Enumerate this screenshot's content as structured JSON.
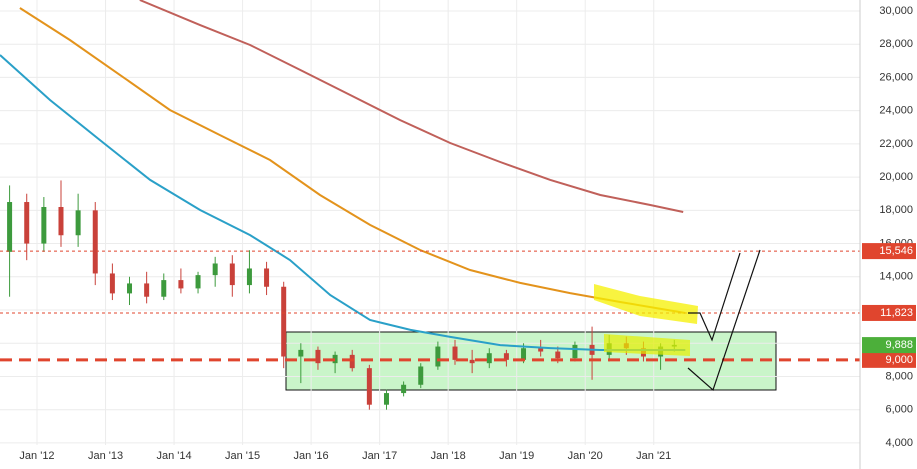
{
  "chart_data": {
    "type": "candlestick",
    "xlim": [
      2011.46,
      2024.01
    ],
    "ylim": [
      2430,
      30660
    ],
    "grid": true,
    "xticks": [
      {
        "value": 2012,
        "label": "Jan '12"
      },
      {
        "value": 2013,
        "label": "Jan '13"
      },
      {
        "value": 2014,
        "label": "Jan '14"
      },
      {
        "value": 2015,
        "label": "Jan '15"
      },
      {
        "value": 2016,
        "label": "Jan '16"
      },
      {
        "value": 2017,
        "label": "Jan '17"
      },
      {
        "value": 2018,
        "label": "Jan '18"
      },
      {
        "value": 2019,
        "label": "Jan '19"
      },
      {
        "value": 2020,
        "label": "Jan '20"
      },
      {
        "value": 2021,
        "label": "Jan '21"
      }
    ],
    "yticks": [
      {
        "value": 4000,
        "label": "4,000"
      },
      {
        "value": 6000,
        "label": "6,000"
      },
      {
        "value": 8000,
        "label": "8,000"
      },
      {
        "value": 10000,
        "label": "10,000"
      },
      {
        "value": 12000,
        "label": "12,000"
      },
      {
        "value": 14000,
        "label": "14,000"
      },
      {
        "value": 16000,
        "label": "16,000"
      },
      {
        "value": 18000,
        "label": "18,000"
      },
      {
        "value": 20000,
        "label": "20,000"
      },
      {
        "value": 22000,
        "label": "22,000"
      },
      {
        "value": 24000,
        "label": "24,000"
      },
      {
        "value": 26000,
        "label": "26,000"
      },
      {
        "value": 28000,
        "label": "28,000"
      },
      {
        "value": 30000,
        "label": "30,000"
      }
    ],
    "up_color": "#3d9a3d",
    "down_color": "#c9413a",
    "candles": {
      "x": [
        2011.6,
        2011.85,
        2012.1,
        2012.35,
        2012.6,
        2012.85,
        2013.1,
        2013.35,
        2013.6,
        2013.85,
        2014.1,
        2014.35,
        2014.6,
        2014.85,
        2015.1,
        2015.35,
        2015.6,
        2015.85,
        2016.1,
        2016.35,
        2016.6,
        2016.85,
        2017.1,
        2017.35,
        2017.6,
        2017.85,
        2018.1,
        2018.35,
        2018.6,
        2018.85,
        2019.1,
        2019.35,
        2019.6,
        2019.85,
        2020.1,
        2020.35,
        2020.6,
        2020.85,
        2021.1,
        2021.3
      ],
      "open": [
        15500,
        18500,
        16000,
        18200,
        16500,
        18000,
        14200,
        13000,
        13600,
        12800,
        13800,
        13300,
        14100,
        14800,
        13500,
        14500,
        13400,
        9200,
        9600,
        8800,
        9300,
        8500,
        6300,
        7000,
        7500,
        8600,
        9800,
        9000,
        8800,
        9400,
        9000,
        9700,
        9500,
        9100,
        9900,
        9300,
        10000,
        9700,
        9200,
        9800
      ],
      "high": [
        19500,
        19000,
        18800,
        19800,
        19000,
        18500,
        14800,
        14000,
        14300,
        14200,
        14500,
        14300,
        15200,
        15300,
        15600,
        14900,
        13700,
        10000,
        9800,
        9500,
        9600,
        8700,
        7200,
        7700,
        8800,
        10100,
        10200,
        9600,
        9700,
        9600,
        10000,
        10200,
        9800,
        10100,
        11000,
        10500,
        10400,
        10100,
        10000,
        10200
      ],
      "low": [
        12800,
        15000,
        15500,
        15800,
        15800,
        13500,
        12600,
        12300,
        12400,
        12600,
        13000,
        13000,
        13400,
        12800,
        13000,
        12900,
        8500,
        7600,
        8400,
        8200,
        8300,
        6000,
        6000,
        6800,
        7300,
        8400,
        8700,
        8200,
        8500,
        8600,
        8800,
        9200,
        8800,
        8900,
        7800,
        8900,
        9300,
        8900,
        8400,
        9500
      ],
      "close": [
        18500,
        16000,
        18200,
        16500,
        18000,
        14200,
        13000,
        13600,
        12800,
        13800,
        13300,
        14100,
        14800,
        13500,
        14500,
        13400,
        9200,
        9600,
        8800,
        9300,
        8500,
        6300,
        7000,
        7500,
        8600,
        9800,
        9000,
        8800,
        9400,
        9000,
        9700,
        9500,
        9100,
        9900,
        9300,
        10000,
        9700,
        9200,
        9800,
        9900
      ]
    },
    "series": [
      {
        "color": "#2aa0c8",
        "x": [
          2011.46,
          2012.19,
          2012.92,
          2013.65,
          2014.38,
          2015.11,
          2015.69,
          2016.28,
          2016.86,
          2017.45,
          2018.03,
          2018.76,
          2019.49,
          2020.22,
          2020.95,
          2021.46
        ],
        "values": [
          27350,
          24640,
          22230,
          19830,
          18020,
          16510,
          15010,
          12900,
          11400,
          10800,
          10380,
          9890,
          9710,
          9590,
          9590,
          9590
        ]
      },
      {
        "color": "#e3931c",
        "x": [
          2011.75,
          2012.48,
          2013.21,
          2013.94,
          2014.67,
          2015.4,
          2016.13,
          2016.86,
          2017.59,
          2018.32,
          2019.05,
          2019.78,
          2020.51,
          2021.46
        ],
        "values": [
          30180,
          28250,
          26150,
          24040,
          22530,
          21030,
          18920,
          17120,
          15610,
          14410,
          13630,
          13020,
          12480,
          11820
        ]
      },
      {
        "color": "#c0605a",
        "x": [
          2013.5,
          2014.38,
          2015.11,
          2015.84,
          2016.57,
          2017.3,
          2018.03,
          2018.76,
          2019.49,
          2020.22,
          2020.95,
          2021.43
        ],
        "values": [
          30660,
          29150,
          27950,
          26450,
          24940,
          23430,
          22050,
          20910,
          19830,
          18920,
          18320,
          17900
        ]
      }
    ],
    "levels": [
      {
        "value": 15546,
        "label": "15,546",
        "color": "#e0452e",
        "style": "thin"
      },
      {
        "value": 11823,
        "label": "11,823",
        "color": "#e0452e",
        "style": "thin"
      },
      {
        "value": 9000,
        "label": "9,000",
        "color": "#e0452e",
        "style": "thick"
      },
      {
        "value": 9888,
        "label": "9,888",
        "color": "#4caf3a",
        "style": "none"
      }
    ]
  }
}
